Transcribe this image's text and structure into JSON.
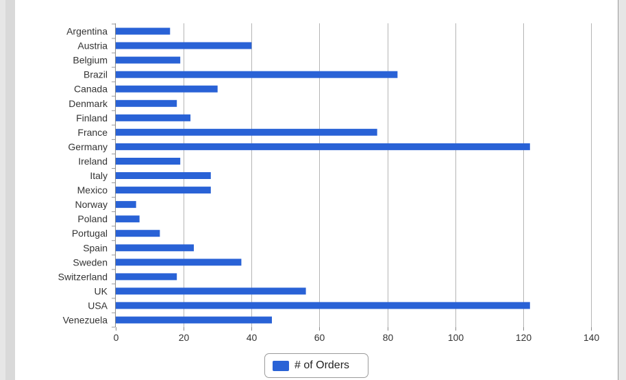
{
  "colors": {
    "bar": "#2962d6",
    "grid": "#b4b4b4",
    "text": "#333333"
  },
  "legend": {
    "label": "# of Orders"
  },
  "chart_data": {
    "type": "bar",
    "orientation": "horizontal",
    "title": "",
    "xlabel": "",
    "ylabel": "",
    "xlim": [
      0,
      140
    ],
    "xticks": [
      0,
      20,
      40,
      60,
      80,
      100,
      120,
      140
    ],
    "grid": true,
    "legend_position": "bottom",
    "categories": [
      "Argentina",
      "Austria",
      "Belgium",
      "Brazil",
      "Canada",
      "Denmark",
      "Finland",
      "France",
      "Germany",
      "Ireland",
      "Italy",
      "Mexico",
      "Norway",
      "Poland",
      "Portugal",
      "Spain",
      "Sweden",
      "Switzerland",
      "UK",
      "USA",
      "Venezuela"
    ],
    "series": [
      {
        "name": "# of Orders",
        "values": [
          16,
          40,
          19,
          83,
          30,
          18,
          22,
          77,
          122,
          19,
          28,
          28,
          6,
          7,
          13,
          23,
          37,
          18,
          56,
          122,
          46
        ]
      }
    ]
  }
}
